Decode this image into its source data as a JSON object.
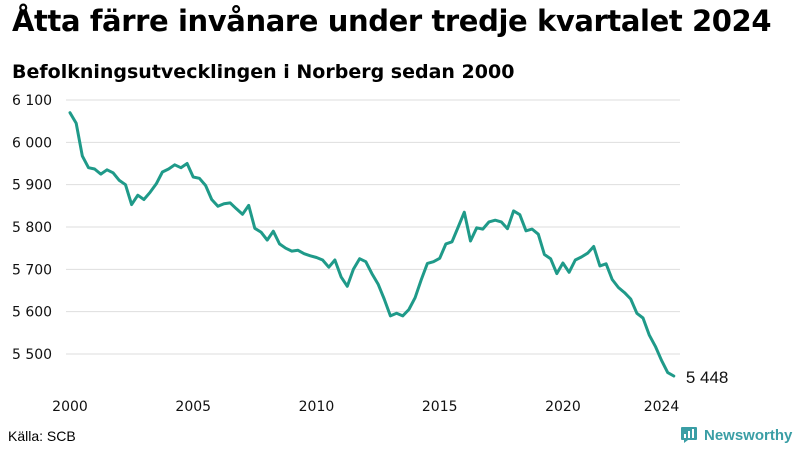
{
  "title": "Åtta färre invånare under tredje kvartalet 2024",
  "subtitle": "Befolkningsutvecklingen i Norberg sedan 2000",
  "source": "Källa: SCB",
  "brand": "Newsworthy",
  "colors": {
    "line": "#1f9a89",
    "grid": "#dedede",
    "brand": "#3a9ea5"
  },
  "chart_data": {
    "type": "line",
    "xlim": [
      2000,
      2024.75
    ],
    "ylim": [
      5448,
      6100
    ],
    "x_ticks": [
      2000,
      2005,
      2010,
      2015,
      2020,
      2024
    ],
    "x_tick_labels": [
      "2000",
      "2005",
      "2010",
      "2015",
      "2020",
      "2024"
    ],
    "y_ticks": [
      5500,
      5600,
      5700,
      5800,
      5900,
      6000,
      6100
    ],
    "y_tick_labels": [
      "5 500",
      "5 600",
      "5 700",
      "5 800",
      "5 900",
      "6 000",
      "6 100"
    ],
    "grid": true,
    "last_value_label": "5 448",
    "x": [
      2000.0,
      2000.25,
      2000.5,
      2000.75,
      2001.0,
      2001.25,
      2001.5,
      2001.75,
      2002.0,
      2002.25,
      2002.5,
      2002.75,
      2003.0,
      2003.25,
      2003.5,
      2003.75,
      2004.0,
      2004.25,
      2004.5,
      2004.75,
      2005.0,
      2005.25,
      2005.5,
      2005.75,
      2006.0,
      2006.25,
      2006.5,
      2006.75,
      2007.0,
      2007.25,
      2007.5,
      2007.75,
      2008.0,
      2008.25,
      2008.5,
      2008.75,
      2009.0,
      2009.25,
      2009.5,
      2009.75,
      2010.0,
      2010.25,
      2010.5,
      2010.75,
      2011.0,
      2011.25,
      2011.5,
      2011.75,
      2012.0,
      2012.25,
      2012.5,
      2012.75,
      2013.0,
      2013.25,
      2013.5,
      2013.75,
      2014.0,
      2014.25,
      2014.5,
      2014.75,
      2015.0,
      2015.25,
      2015.5,
      2015.75,
      2016.0,
      2016.25,
      2016.5,
      2016.75,
      2017.0,
      2017.25,
      2017.5,
      2017.75,
      2018.0,
      2018.25,
      2018.5,
      2018.75,
      2019.0,
      2019.25,
      2019.5,
      2019.75,
      2020.0,
      2020.25,
      2020.5,
      2020.75,
      2021.0,
      2021.25,
      2021.5,
      2021.75,
      2022.0,
      2022.25,
      2022.5,
      2022.75,
      2023.0,
      2023.25,
      2023.5,
      2023.75,
      2024.0,
      2024.25,
      2024.5
    ],
    "y": [
      6070,
      6045,
      5968,
      5940,
      5937,
      5925,
      5935,
      5928,
      5910,
      5900,
      5853,
      5875,
      5865,
      5882,
      5902,
      5930,
      5937,
      5947,
      5940,
      5950,
      5918,
      5915,
      5898,
      5865,
      5849,
      5855,
      5857,
      5843,
      5830,
      5851,
      5797,
      5788,
      5769,
      5790,
      5760,
      5750,
      5743,
      5745,
      5737,
      5732,
      5728,
      5722,
      5705,
      5722,
      5682,
      5660,
      5700,
      5725,
      5718,
      5690,
      5665,
      5630,
      5590,
      5596,
      5590,
      5605,
      5633,
      5675,
      5714,
      5718,
      5726,
      5760,
      5765,
      5800,
      5835,
      5767,
      5798,
      5795,
      5812,
      5816,
      5812,
      5796,
      5838,
      5829,
      5791,
      5795,
      5783,
      5735,
      5725,
      5690,
      5715,
      5693,
      5722,
      5729,
      5738,
      5754,
      5708,
      5713,
      5676,
      5657,
      5645,
      5630,
      5596,
      5585,
      5545,
      5518,
      5485,
      5456,
      5448
    ]
  }
}
